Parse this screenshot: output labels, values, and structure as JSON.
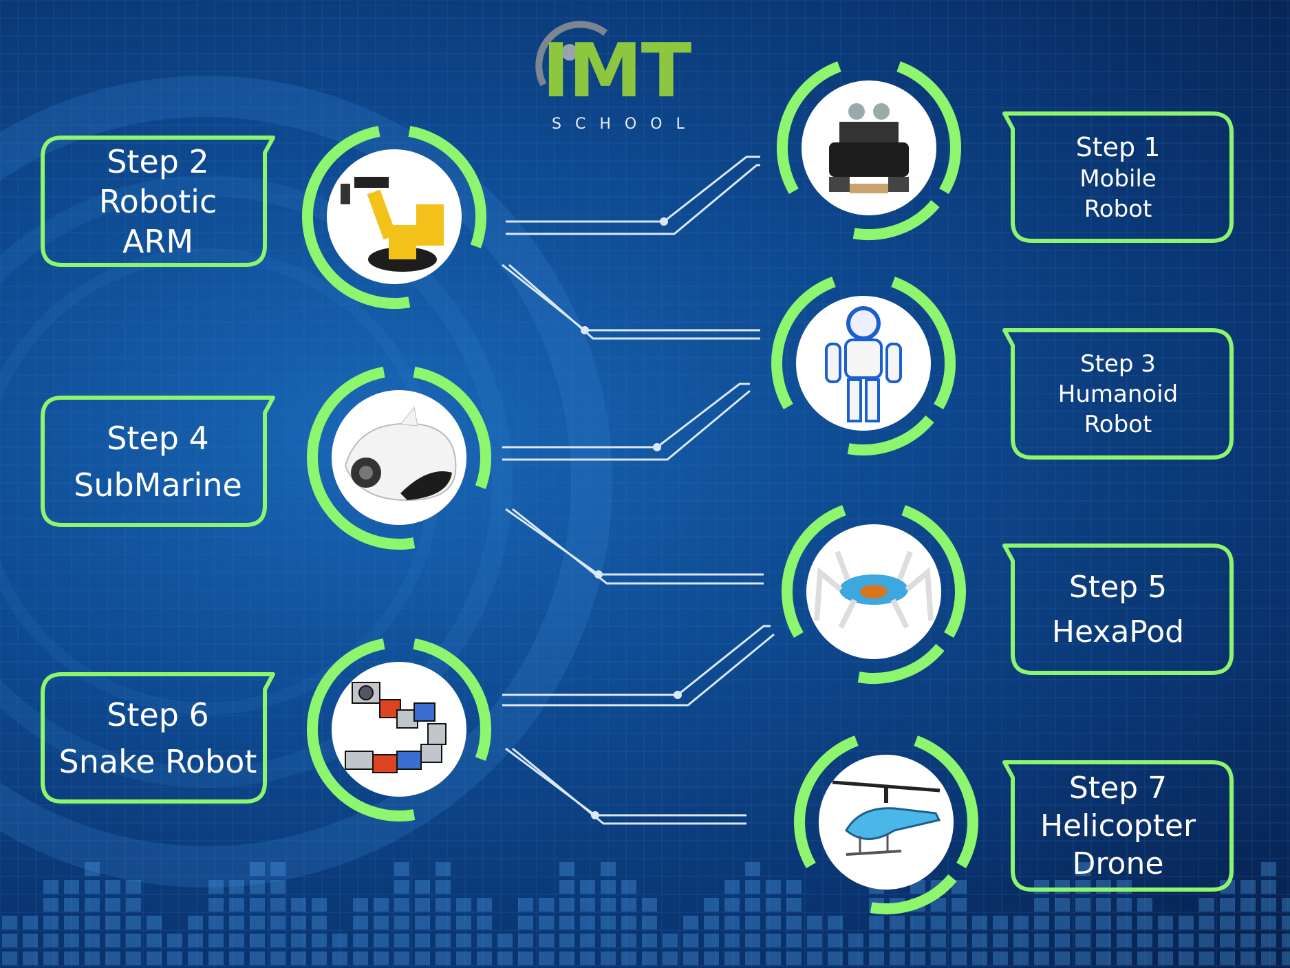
{
  "logo": {
    "name": "IMT",
    "sub": "SCHOOL"
  },
  "colors": {
    "accent": "#8ef56e",
    "line": "#dbe9f7",
    "bg": "#0f4c94"
  },
  "steps": [
    {
      "step": "Step 1",
      "name_lines": [
        "Mobile",
        "Robot"
      ],
      "icon": "mobile-robot-image"
    },
    {
      "step": "Step 2",
      "name_lines": [
        "Robotic",
        "ARM"
      ],
      "icon": "robotic-arm-image"
    },
    {
      "step": "Step 3",
      "name_lines": [
        "Humanoid",
        "Robot"
      ],
      "icon": "humanoid-robot-image"
    },
    {
      "step": "Step 4",
      "name_lines": [
        "SubMarine"
      ],
      "icon": "submarine-image"
    },
    {
      "step": "Step 5",
      "name_lines": [
        "HexaPod"
      ],
      "icon": "hexapod-image"
    },
    {
      "step": "Step 6",
      "name_lines": [
        "Snake Robot"
      ],
      "icon": "snake-robot-image"
    },
    {
      "step": "Step 7",
      "name_lines": [
        "Helicopter",
        "Drone"
      ],
      "icon": "helicopter-drone-image"
    }
  ]
}
